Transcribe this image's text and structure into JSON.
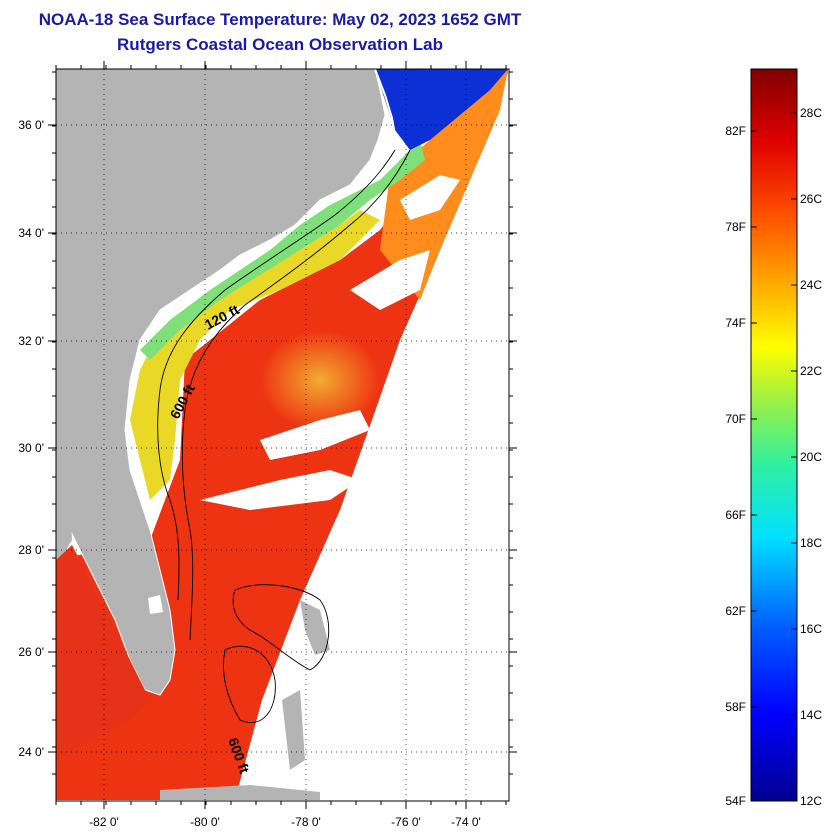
{
  "header": {
    "title": "NOAA-18 Sea Surface Temperature:  May 02, 2023 1652 GMT",
    "subtitle": "Rutgers Coastal Ocean Observation Lab"
  },
  "map": {
    "lat_ticks": [
      "36 0'",
      "34 0'",
      "32 0'",
      "30 0'",
      "28 0'",
      "26 0'",
      "24 0'"
    ],
    "lon_ticks": [
      "-82 0'",
      "-80 0'",
      "-78 0'",
      "-76 0'",
      "-74 0'"
    ],
    "contour_labels": [
      "120 ft",
      "600 ft",
      "600 ft"
    ],
    "colors": {
      "land": "#b4b4b4",
      "cloud": "#ffffff",
      "warm": "#ee2a10",
      "orange": "#ff8c18",
      "yellow": "#e8f020",
      "green": "#80e070",
      "cold": "#0a2ad0"
    }
  },
  "colorbar": {
    "fahrenheit": [
      "82F",
      "78F",
      "74F",
      "70F",
      "66F",
      "62F",
      "58F",
      "54F"
    ],
    "celsius": [
      "28C",
      "26C",
      "24C",
      "22C",
      "20C",
      "18C",
      "16C",
      "14C",
      "12C"
    ]
  }
}
